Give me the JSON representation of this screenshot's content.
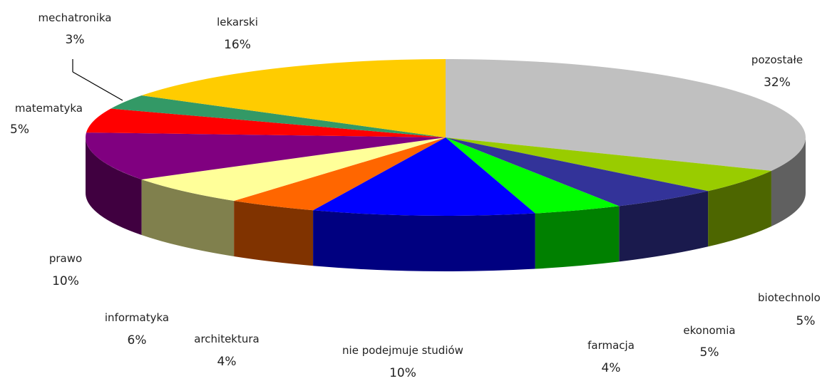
{
  "chart_data": {
    "type": "pie",
    "title": "",
    "slices": [
      {
        "label": "pozostałe",
        "value_label": "32%",
        "value": 32,
        "color": "#C0C0C0"
      },
      {
        "label": "biotechnolo",
        "value_label": "5%",
        "value": 5,
        "color": "#99CC00"
      },
      {
        "label": "ekonomia",
        "value_label": "5%",
        "value": 5,
        "color": "#333399"
      },
      {
        "label": "farmacja",
        "value_label": "4%",
        "value": 4,
        "color": "#00FF00"
      },
      {
        "label": "nie podejmuje studiów",
        "value_label": "10%",
        "value": 10,
        "color": "#0000FF"
      },
      {
        "label": "architektura",
        "value_label": "4%",
        "value": 4,
        "color": "#FF6600"
      },
      {
        "label": "informatyka",
        "value_label": "6%",
        "value": 6,
        "color": "#FFFF99"
      },
      {
        "label": "prawo",
        "value_label": "10%",
        "value": 10,
        "color": "#800080"
      },
      {
        "label": "matematyka",
        "value_label": "5%",
        "value": 5,
        "color": "#FF0000"
      },
      {
        "label": "mechatronika",
        "value_label": "3%",
        "value": 3,
        "color": "#339966"
      },
      {
        "label": "lekarski",
        "value_label": "16%",
        "value": 16,
        "color": "#FFCC00"
      }
    ],
    "style": "3d-pie",
    "legend": "none"
  }
}
